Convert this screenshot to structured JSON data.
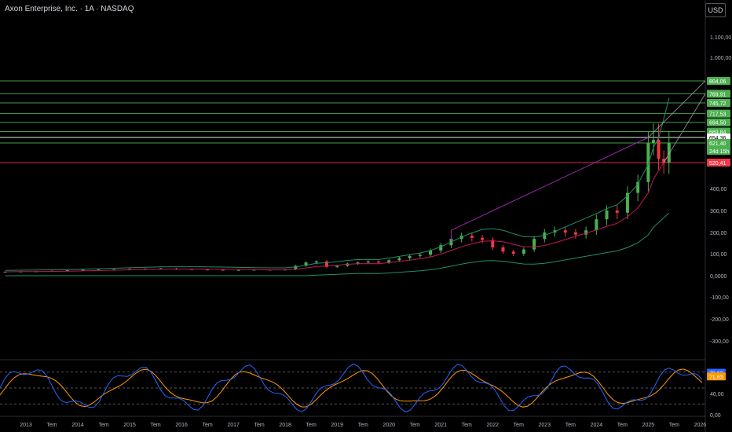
{
  "header": {
    "title": "Axon Enterprise, Inc. · 1A · NASDAQ",
    "currency_label": "USD"
  },
  "price_axis": {
    "ticks": [
      {
        "label": "1.100,00",
        "v": 1100
      },
      {
        "label": "1.000,00",
        "v": 1000
      },
      {
        "label": "400,00",
        "v": 400
      },
      {
        "label": "300,00",
        "v": 300
      },
      {
        "label": "200,00",
        "v": 200
      },
      {
        "label": "100,00",
        "v": 100
      },
      {
        "label": "0,0000",
        "v": 0
      },
      {
        "label": "-100,00",
        "v": -100
      },
      {
        "label": "-200,00",
        "v": -200
      },
      {
        "label": "-300,00",
        "v": -300
      }
    ],
    "ylim": [
      -300,
      1100
    ]
  },
  "price_labels": [
    {
      "label": "804,06",
      "v": 804.06,
      "color": "#4caf50"
    },
    {
      "label": "769,91",
      "v": 769.91,
      "color": "#4caf50"
    },
    {
      "label": "745,72",
      "v": 745.72,
      "color": "#4caf50"
    },
    {
      "label": "717,53",
      "v": 717.53,
      "color": "#4caf50"
    },
    {
      "label": "694,50",
      "v": 694.5,
      "color": "#4caf50"
    },
    {
      "label": "669,84",
      "v": 669.84,
      "color": "#4caf50"
    },
    {
      "label": "654,36",
      "v": 654.36,
      "color": "#ffffff"
    },
    {
      "label": "621,40",
      "v": 621.4,
      "color": "#4caf50",
      "sub": "24d 15h"
    },
    {
      "label": "520,41",
      "v": 520.41,
      "color": "#f23645"
    }
  ],
  "time_axis": {
    "labels": [
      "2013",
      "Tem",
      "2014",
      "Tem",
      "2015",
      "Tem",
      "2016",
      "Tem",
      "2017",
      "Tem",
      "2018",
      "Tem",
      "2019",
      "Tem",
      "2020",
      "Tem",
      "2021",
      "Tem",
      "2022",
      "Tem",
      "2023",
      "Tem",
      "2024",
      "Tem",
      "2025",
      "Tem",
      "2026"
    ]
  },
  "oscillator": {
    "ticks": [
      {
        "label": "40,00",
        "v": 40
      },
      {
        "label": "0,00",
        "v": 0
      }
    ],
    "value_labels": [
      {
        "label": "78,62",
        "v": 78.62,
        "color": "#2962ff"
      },
      {
        "label": "71,63",
        "v": 71.63,
        "color": "#ff9800"
      }
    ]
  },
  "chart_data": {
    "type": "candlestick",
    "title": "Axon Enterprise, Inc. · 1A · NASDAQ",
    "x_start_year": 2012.5,
    "x_end_year": 2026.1,
    "closes": [
      [
        2012.6,
        18
      ],
      [
        2012.9,
        19
      ],
      [
        2013.2,
        20
      ],
      [
        2013.5,
        22
      ],
      [
        2013.8,
        25
      ],
      [
        2014.1,
        27
      ],
      [
        2014.4,
        28
      ],
      [
        2014.7,
        29
      ],
      [
        2015.0,
        30
      ],
      [
        2015.3,
        31
      ],
      [
        2015.6,
        33
      ],
      [
        2015.9,
        30
      ],
      [
        2016.2,
        28
      ],
      [
        2016.5,
        27
      ],
      [
        2016.8,
        25
      ],
      [
        2017.1,
        26
      ],
      [
        2017.4,
        27
      ],
      [
        2017.7,
        26
      ],
      [
        2018.0,
        28
      ],
      [
        2018.2,
        45
      ],
      [
        2018.4,
        60
      ],
      [
        2018.6,
        65
      ],
      [
        2018.8,
        40
      ],
      [
        2019.0,
        45
      ],
      [
        2019.2,
        55
      ],
      [
        2019.4,
        60
      ],
      [
        2019.6,
        65
      ],
      [
        2019.8,
        60
      ],
      [
        2020.0,
        70
      ],
      [
        2020.2,
        80
      ],
      [
        2020.4,
        90
      ],
      [
        2020.6,
        95
      ],
      [
        2020.8,
        115
      ],
      [
        2021.0,
        140
      ],
      [
        2021.2,
        170
      ],
      [
        2021.4,
        185
      ],
      [
        2021.6,
        175
      ],
      [
        2021.8,
        165
      ],
      [
        2022.0,
        130
      ],
      [
        2022.2,
        110
      ],
      [
        2022.4,
        100
      ],
      [
        2022.6,
        120
      ],
      [
        2022.8,
        170
      ],
      [
        2023.0,
        200
      ],
      [
        2023.2,
        210
      ],
      [
        2023.4,
        200
      ],
      [
        2023.6,
        190
      ],
      [
        2023.8,
        210
      ],
      [
        2024.0,
        260
      ],
      [
        2024.2,
        300
      ],
      [
        2024.4,
        290
      ],
      [
        2024.6,
        380
      ],
      [
        2024.8,
        430
      ],
      [
        2025.0,
        620
      ],
      [
        2025.1,
        640
      ],
      [
        2025.2,
        540
      ],
      [
        2025.3,
        520
      ],
      [
        2025.4,
        621
      ]
    ]
  }
}
